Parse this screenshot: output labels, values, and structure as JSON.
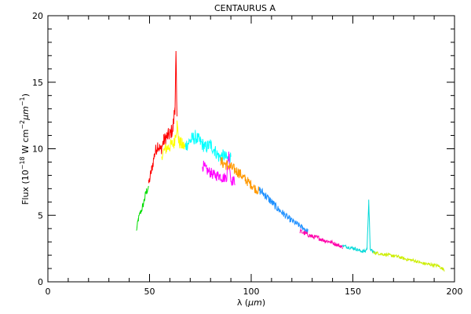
{
  "chart_data": {
    "type": "line",
    "title": "CENTAURUS A",
    "xlabel": {
      "prefix": "λ (",
      "unit": "μm",
      "suffix": ")"
    },
    "ylabel": {
      "flux": "Flux (10",
      "exp1": "−18",
      "w": " W cm",
      "exp2": "−2",
      "um": "μm",
      "exp3": "−1",
      "close": ")"
    },
    "xlim": [
      0,
      200
    ],
    "ylim": [
      0,
      20
    ],
    "x_ticks": [
      {
        "value": 0,
        "label": "0"
      },
      {
        "value": 50,
        "label": "50"
      },
      {
        "value": 100,
        "label": "100"
      },
      {
        "value": 150,
        "label": "150"
      },
      {
        "value": 200,
        "label": "200"
      }
    ],
    "y_ticks": [
      {
        "value": 0,
        "label": "0"
      },
      {
        "value": 5,
        "label": "5"
      },
      {
        "value": 10,
        "label": "10"
      },
      {
        "value": 15,
        "label": "15"
      },
      {
        "value": 20,
        "label": "20"
      }
    ],
    "grid": false,
    "legend": "none",
    "series": [
      {
        "color": "#00dd00",
        "x": [
          43.5,
          44.5,
          45.5,
          46.5,
          47.5,
          48.5,
          49.5
        ],
        "y": [
          3.8,
          4.7,
          5.2,
          5.6,
          6.2,
          6.8,
          7.2
        ]
      },
      {
        "color": "#ff0000",
        "x": [
          49.5,
          51,
          52.5,
          54,
          55.5,
          57,
          58.5,
          60,
          61.5,
          62.5,
          63,
          63.5
        ],
        "y": [
          7.3,
          8.4,
          9.6,
          10.3,
          9.9,
          10.6,
          10.9,
          11.1,
          11.5,
          13.2,
          16.8,
          12.0
        ]
      },
      {
        "color": "#ffff00",
        "x": [
          56,
          58,
          60,
          62,
          63.5,
          64.5,
          66,
          67.5
        ],
        "y": [
          9.6,
          10.0,
          10.2,
          10.4,
          11.8,
          10.5,
          10.3,
          10.1
        ]
      },
      {
        "color": "#00ffff",
        "x": [
          67.5,
          70,
          72.5,
          75,
          77.5,
          80,
          82,
          84,
          86.5,
          88.5,
          90
        ],
        "y": [
          10.2,
          10.6,
          10.9,
          10.5,
          10.1,
          10.3,
          9.9,
          9.4,
          9.5,
          9.2,
          9.4
        ]
      },
      {
        "color": "#ff00ff",
        "x": [
          76,
          78,
          80,
          82,
          84,
          86,
          88,
          89,
          90,
          92
        ],
        "y": [
          8.8,
          8.4,
          8.2,
          8.0,
          8.0,
          7.8,
          7.9,
          9.8,
          7.6,
          7.6
        ]
      },
      {
        "color": "#ff9900",
        "x": [
          85,
          88,
          91,
          94,
          97,
          100,
          102,
          104
        ],
        "y": [
          9.0,
          8.8,
          8.5,
          8.2,
          7.7,
          7.3,
          7.0,
          6.8
        ]
      },
      {
        "color": "#1e90ff",
        "x": [
          104,
          107,
          110,
          113,
          116,
          119,
          122,
          125,
          128
        ],
        "y": [
          6.9,
          6.5,
          6.0,
          5.5,
          5.1,
          4.7,
          4.4,
          4.1,
          3.8
        ]
      },
      {
        "color": "#ff00aa",
        "x": [
          124,
          127,
          130,
          133,
          136,
          139,
          142,
          145
        ],
        "y": [
          3.8,
          3.6,
          3.4,
          3.3,
          3.1,
          3.0,
          2.8,
          2.6
        ]
      },
      {
        "color": "#00d8d8",
        "x": [
          145,
          148,
          151,
          154,
          156,
          157,
          157.8,
          158.5,
          159.5,
          161
        ],
        "y": [
          2.7,
          2.6,
          2.5,
          2.3,
          2.3,
          2.5,
          6.2,
          2.5,
          2.3,
          2.2
        ]
      },
      {
        "color": "#ccee00",
        "x": [
          160,
          164,
          168,
          172,
          176,
          180,
          184,
          188,
          192,
          195
        ],
        "y": [
          2.2,
          2.1,
          2.0,
          1.9,
          1.7,
          1.6,
          1.4,
          1.3,
          1.2,
          0.9
        ]
      }
    ]
  }
}
